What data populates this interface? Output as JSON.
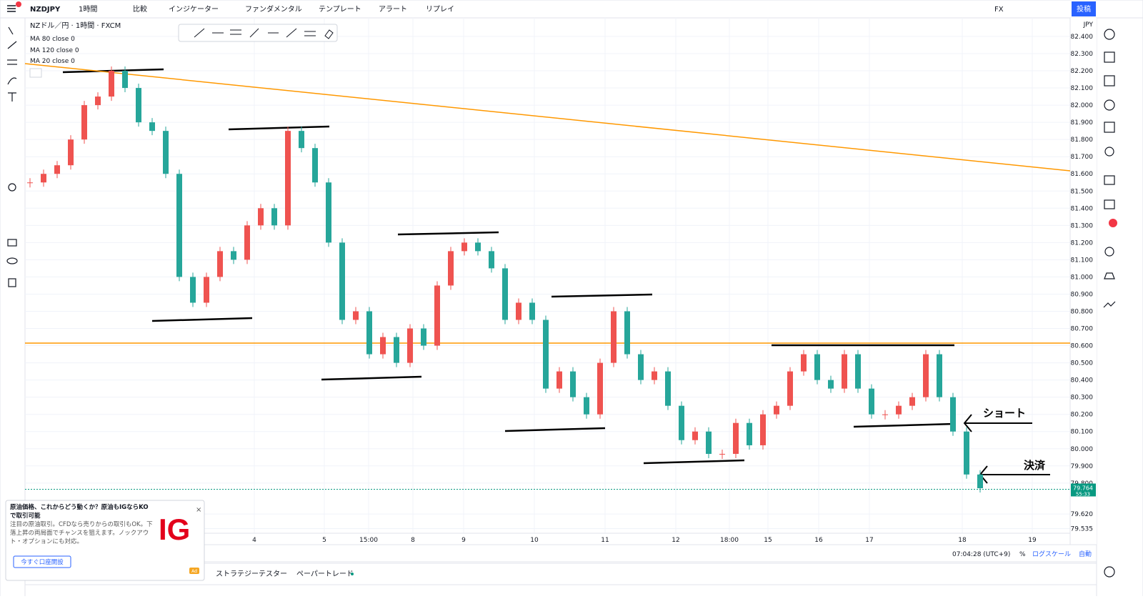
{
  "toolbar": {
    "symbol": "NZDJPY",
    "interval": "1時間",
    "items": [
      "比較",
      "インジケーター",
      "ファンダメンタル",
      "テンプレート",
      "アラート",
      "リプレイ"
    ],
    "market": "FX",
    "publish": "投稿"
  },
  "chart_data": {
    "type": "candlestick",
    "title": "NZドル／円 · 1時間 · FXCM",
    "indicators": [
      "MA 80 close 0",
      "MA 120 close 0",
      "MA 20 close 0"
    ],
    "currency": "JPY",
    "x_labels": [
      "4",
      "5",
      "15:00",
      "8",
      "9",
      "10",
      "11",
      "12",
      "18:00",
      "15",
      "16",
      "17",
      "18",
      "19"
    ],
    "values": [
      81.55,
      81.6,
      81.65,
      81.8,
      82.0,
      82.05,
      82.2,
      82.1,
      81.9,
      81.85,
      81.6,
      81.0,
      80.85,
      81.0,
      81.15,
      81.1,
      81.3,
      81.4,
      81.3,
      81.85,
      81.75,
      81.55,
      81.2,
      80.75,
      80.8,
      80.55,
      80.65,
      80.5,
      80.7,
      80.6,
      80.95,
      81.15,
      81.2,
      81.15,
      81.05,
      80.75,
      80.85,
      80.75,
      80.35,
      80.45,
      80.3,
      80.2,
      80.5,
      80.8,
      80.55,
      80.4,
      80.45,
      80.25,
      80.05,
      80.1,
      79.97,
      79.97,
      80.15,
      80.02,
      80.2,
      80.25,
      80.45,
      80.55,
      80.4,
      80.35,
      80.55,
      80.35,
      80.2,
      80.2,
      80.25,
      80.3,
      80.55,
      80.3,
      80.1,
      79.85,
      79.77
    ],
    "up_color": "#ef5350",
    "down_color": "#26a69a",
    "ylim": [
      79.508,
      82.508
    ],
    "yticks": [
      {
        "value": 82.4,
        "label": "82.400"
      },
      {
        "value": 82.3,
        "label": "82.300"
      },
      {
        "value": 82.2,
        "label": "82.200"
      },
      {
        "value": 82.1,
        "label": "82.100"
      },
      {
        "value": 82.0,
        "label": "82.000"
      },
      {
        "value": 81.9,
        "label": "81.900"
      },
      {
        "value": 81.8,
        "label": "81.800"
      },
      {
        "value": 81.7,
        "label": "81.700"
      },
      {
        "value": 81.6,
        "label": "81.600"
      },
      {
        "value": 81.5,
        "label": "81.500"
      },
      {
        "value": 81.4,
        "label": "81.400"
      },
      {
        "value": 81.3,
        "label": "81.300"
      },
      {
        "value": 81.2,
        "label": "81.200"
      },
      {
        "value": 81.1,
        "label": "81.100"
      },
      {
        "value": 81.0,
        "label": "81.000"
      },
      {
        "value": 80.9,
        "label": "80.900"
      },
      {
        "value": 80.8,
        "label": "80.800"
      },
      {
        "value": 80.7,
        "label": "80.700"
      },
      {
        "value": 80.6,
        "label": "80.600"
      },
      {
        "value": 80.5,
        "label": "80.500"
      },
      {
        "value": 80.4,
        "label": "80.400"
      },
      {
        "value": 80.3,
        "label": "80.300"
      },
      {
        "value": 80.2,
        "label": "80.200"
      },
      {
        "value": 80.1,
        "label": "80.100"
      },
      {
        "value": 80.0,
        "label": "80.000"
      },
      {
        "value": 79.9,
        "label": "79.900"
      },
      {
        "value": 79.8,
        "label": "79.800"
      },
      {
        "value": 79.62,
        "label": "79.620"
      },
      {
        "value": 79.535,
        "label": "79.535"
      }
    ],
    "last_price": 79.764,
    "countdown": "55:33",
    "annotations": [
      "ショート",
      "決済"
    ]
  },
  "ad": {
    "title": "原油価格、これからどう動くか？原油もIGならKOで取引可能",
    "body": "注目の原油取引。CFDなら売りからの取引もOK。下落上昇の両局面でチャンスを狙えます。ノックアウト・オプションにも対応。",
    "button": "今すぐ口座開設",
    "logo": "IG",
    "badge": "Ad"
  },
  "status": {
    "time": "07:04:28 (UTC+9)",
    "percent": "%",
    "log": "ログスケール",
    "auto": "自動",
    "tabs": [
      "ストラテジーテスター",
      "ペーパートレード"
    ]
  }
}
